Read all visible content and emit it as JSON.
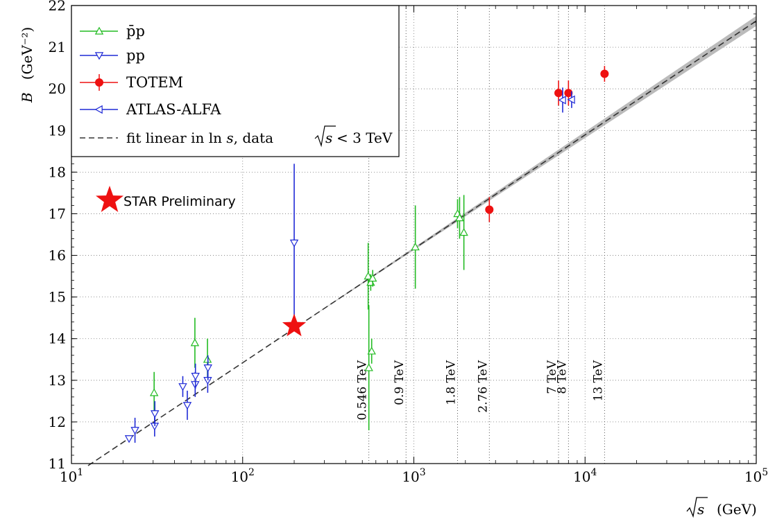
{
  "chart_data": {
    "type": "scatter",
    "title": "",
    "xlabel": "√s",
    "xunit": "(GeV)",
    "ylabel": "B",
    "yunit": "(GeV⁻²)",
    "xscale": "log",
    "xlim": [
      10,
      100000
    ],
    "ylim": [
      11,
      22
    ],
    "grid": true,
    "legend_position": "top-left",
    "x_tick_labels": [
      {
        "x": 10,
        "base": "10",
        "exp": "1"
      },
      {
        "x": 100,
        "base": "10",
        "exp": "2"
      },
      {
        "x": 1000,
        "base": "10",
        "exp": "3"
      },
      {
        "x": 10000,
        "base": "10",
        "exp": "4"
      },
      {
        "x": 100000,
        "base": "10",
        "exp": "5"
      }
    ],
    "y_ticks": [
      11,
      12,
      13,
      14,
      15,
      16,
      17,
      18,
      19,
      20,
      21,
      22
    ],
    "energy_markers": [
      {
        "x": 546,
        "label": "0.546 TeV"
      },
      {
        "x": 900,
        "label": "0.9 TeV"
      },
      {
        "x": 1800,
        "label": "1.8 TeV"
      },
      {
        "x": 2760,
        "label": "2.76 TeV"
      },
      {
        "x": 7000,
        "label": "7 TeV"
      },
      {
        "x": 8000,
        "label": "8 TeV"
      },
      {
        "x": 13000,
        "label": "13 TeV"
      }
    ],
    "series": [
      {
        "name": "p̄p",
        "marker": "triangle-up-open",
        "color": "#22bb22",
        "points": [
          {
            "x": 30.4,
            "y": 12.7,
            "err": 0.5
          },
          {
            "x": 52.6,
            "y": 13.9,
            "err": 0.6
          },
          {
            "x": 62.3,
            "y": 13.5,
            "err": 0.5
          },
          {
            "x": 541,
            "y": 15.5,
            "err": 0.8
          },
          {
            "x": 546,
            "y": 13.3,
            "err": 1.5
          },
          {
            "x": 560,
            "y": 15.35,
            "err": 0.2
          },
          {
            "x": 567,
            "y": 13.7,
            "err": 0.3
          },
          {
            "x": 575,
            "y": 15.45,
            "err": 0.2
          },
          {
            "x": 1020,
            "y": 16.2,
            "err": 1.0
          },
          {
            "x": 1800,
            "y": 17.0,
            "err": 0.35
          },
          {
            "x": 1850,
            "y": 16.9,
            "err": 0.5
          },
          {
            "x": 1960,
            "y": 16.55,
            "err": 0.9
          }
        ]
      },
      {
        "name": "pp",
        "marker": "triangle-down-open",
        "color": "#1f2ad6",
        "points": [
          {
            "x": 21.7,
            "y": 11.6,
            "err": 0.05
          },
          {
            "x": 23.5,
            "y": 11.8,
            "err": 0.3
          },
          {
            "x": 30.6,
            "y": 11.9,
            "err": 0.25
          },
          {
            "x": 30.7,
            "y": 12.2,
            "err": 0.3
          },
          {
            "x": 44.7,
            "y": 12.85,
            "err": 0.25
          },
          {
            "x": 47.5,
            "y": 12.4,
            "err": 0.35
          },
          {
            "x": 52.8,
            "y": 12.9,
            "err": 0.3
          },
          {
            "x": 53.0,
            "y": 13.1,
            "err": 0.3
          },
          {
            "x": 62.5,
            "y": 13.0,
            "err": 0.3
          },
          {
            "x": 62.7,
            "y": 13.3,
            "err": 0.3
          },
          {
            "x": 200,
            "y": 16.3,
            "err": 1.9
          }
        ]
      },
      {
        "name": "TOTEM",
        "marker": "circle-filled",
        "color": "#ee1111",
        "points": [
          {
            "x": 2760,
            "y": 17.1,
            "err": 0.3
          },
          {
            "x": 7000,
            "y": 19.9,
            "err": 0.3
          },
          {
            "x": 8000,
            "y": 19.9,
            "err": 0.3
          },
          {
            "x": 13000,
            "y": 20.36,
            "err": 0.19
          }
        ]
      },
      {
        "name": "ATLAS-ALFA",
        "marker": "triangle-left-open",
        "color": "#1f2ad6",
        "points": [
          {
            "x": 7400,
            "y": 19.73,
            "err": 0.3
          },
          {
            "x": 8350,
            "y": 19.74,
            "err": 0.2
          }
        ]
      }
    ],
    "fit": {
      "label": "fit linear in ln s, data √s < 3 TeV",
      "label_parts": {
        "a": "fit linear in ",
        "b": "ln ",
        "c": "s",
        "d": ", data ",
        "e": " < 3 TeV"
      },
      "color": "#333333",
      "band_color": "#bbbbbb",
      "x_range": [
        12.5,
        100000
      ],
      "y_at_x_min": 10.95,
      "y_at_x_max": 21.63,
      "band_halfwidth_at_x_max": 0.12
    },
    "star": {
      "x": 200,
      "y": 14.3,
      "label": "STAR Preliminary",
      "color": "#ee1111"
    }
  }
}
